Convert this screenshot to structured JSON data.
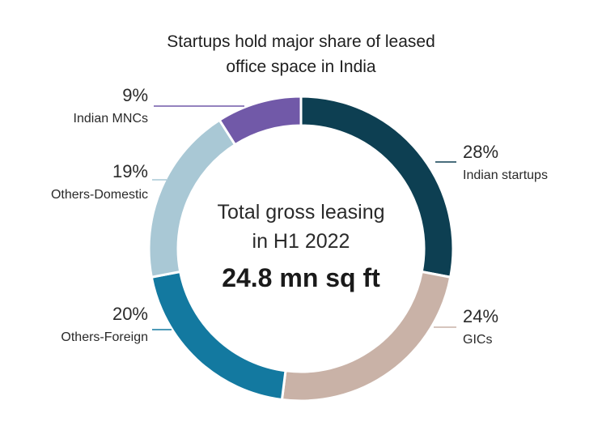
{
  "chart_data": {
    "type": "pie",
    "title_lines": [
      "Startups hold major share of leased",
      "office space in India"
    ],
    "center_text": {
      "line1": "Total gross leasing",
      "line2": "in H1 2022",
      "value": "24.8 mn sq ft"
    },
    "slices": [
      {
        "label": "Indian startups",
        "value": 28,
        "value_label": "28%",
        "color": "#0d3f52"
      },
      {
        "label": "GICs",
        "value": 24,
        "value_label": "24%",
        "color": "#c9b2a7"
      },
      {
        "label": "Others-Foreign",
        "value": 20,
        "value_label": "20%",
        "color": "#1379a0"
      },
      {
        "label": "Others-Domestic",
        "value": 19,
        "value_label": "19%",
        "color": "#a9c8d5"
      },
      {
        "label": "Indian MNCs",
        "value": 9,
        "value_label": "9%",
        "color": "#7159a8"
      }
    ],
    "donut": true
  }
}
